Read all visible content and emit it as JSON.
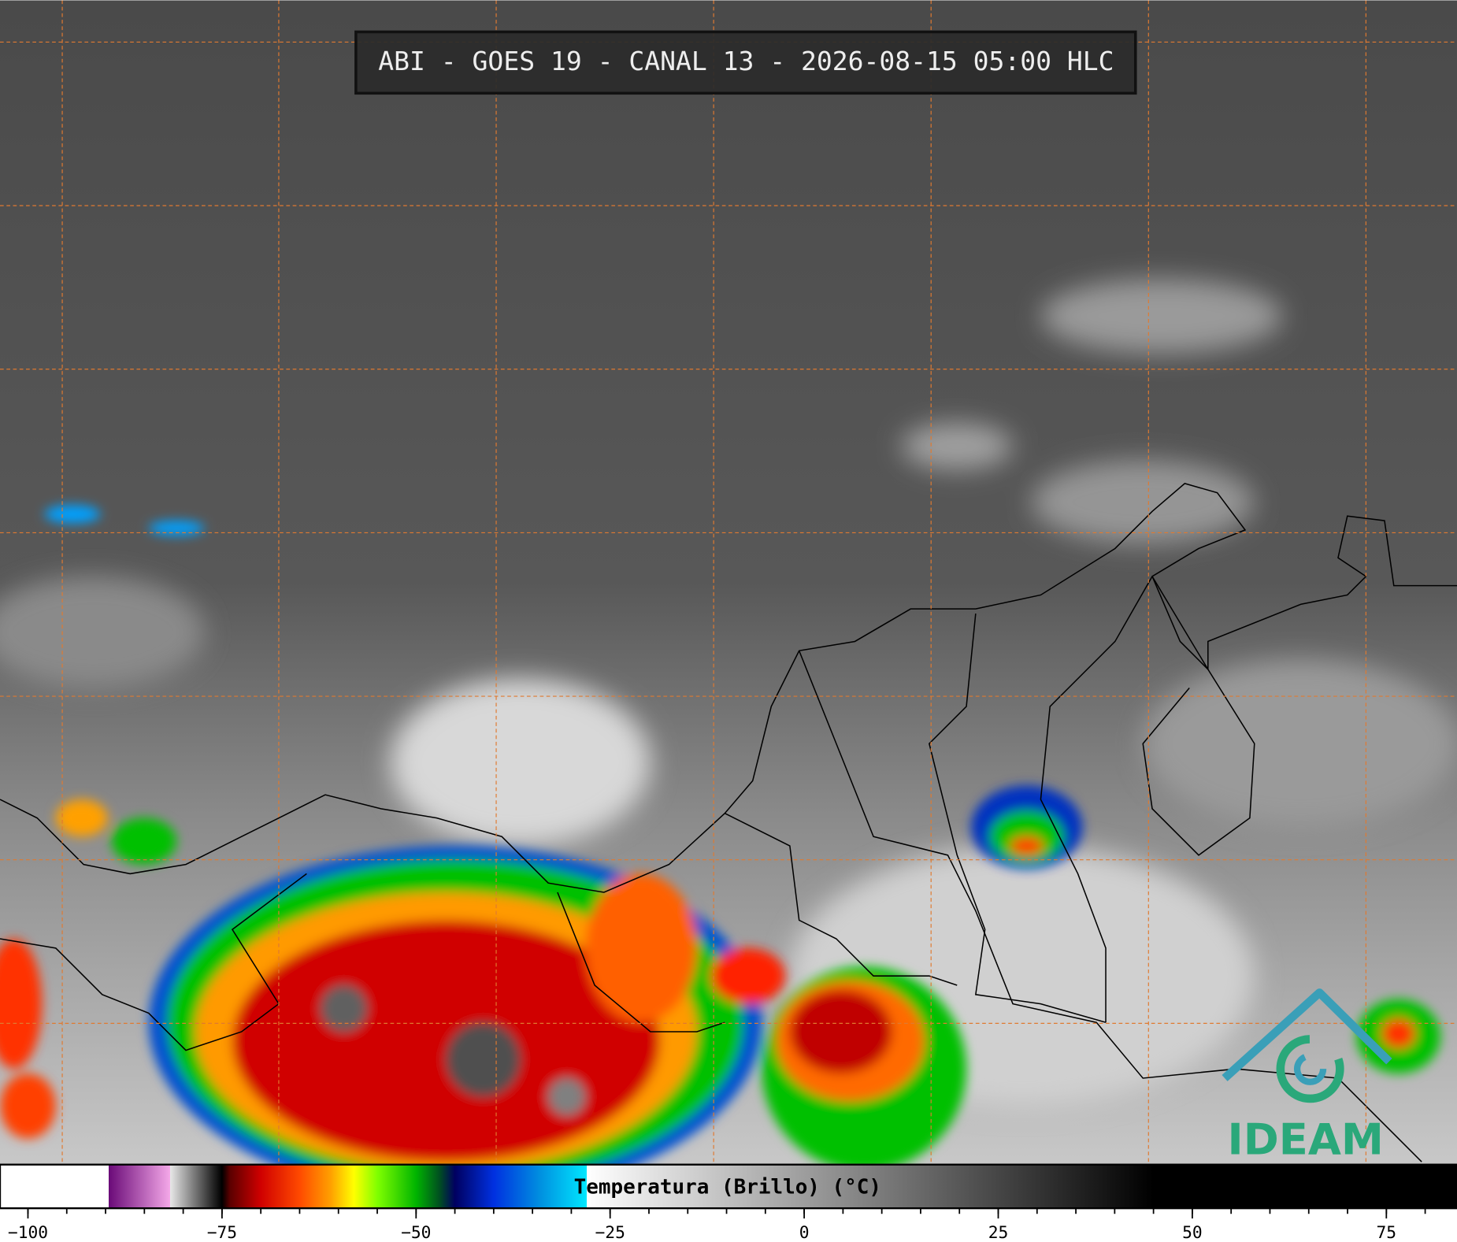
{
  "title": "ABI - GOES 19 - CANAL 13 - 2026-08-15 05:00 HLC",
  "logo": "IDEAM",
  "colorbar": {
    "label": "Temperatura (Brillo) (°C)",
    "xlim": [
      -103.6,
      84.1
    ],
    "xticks": [
      {
        "value": -100,
        "label": "−100"
      },
      {
        "value": -75,
        "label": "−75"
      },
      {
        "value": -50,
        "label": "−50"
      },
      {
        "value": -25,
        "label": "−25"
      },
      0,
      25,
      50,
      75
    ],
    "minor_ticks": [
      -100,
      -95,
      -90,
      -85,
      -80,
      -75,
      -70,
      -65,
      -60,
      -55,
      -50,
      -45,
      -40,
      -35,
      -30,
      -25,
      -20,
      -15,
      -10,
      -5,
      0,
      5,
      10,
      15,
      20,
      25,
      30,
      35,
      40,
      45,
      50,
      55,
      60,
      65,
      70,
      75,
      80
    ],
    "colormap": [
      {
        "value": -103.6,
        "color": "#ffffff"
      },
      {
        "value": -89.6,
        "color": "#ffffff"
      },
      {
        "value": -89.6,
        "color": "#6a0a78"
      },
      {
        "value": -81.7,
        "color": "#f4a8e8"
      },
      {
        "value": -81.7,
        "color": "#e8e8e8"
      },
      {
        "value": -76,
        "color": "#202020"
      },
      {
        "value": -75,
        "color": "#000000"
      },
      {
        "value": -74,
        "color": "#5a0000"
      },
      {
        "value": -70,
        "color": "#d00000"
      },
      {
        "value": -65,
        "color": "#ff4a00"
      },
      {
        "value": -61,
        "color": "#ffa000"
      },
      {
        "value": -58,
        "color": "#ffff00"
      },
      {
        "value": -55,
        "color": "#80ff00"
      },
      {
        "value": -50,
        "color": "#00b400"
      },
      {
        "value": -47,
        "color": "#005020"
      },
      {
        "value": -45,
        "color": "#000060"
      },
      {
        "value": -40,
        "color": "#0030e0"
      },
      {
        "value": -34,
        "color": "#0090e0"
      },
      {
        "value": -28,
        "color": "#00e8ff"
      },
      {
        "value": -28,
        "color": "#ffffff"
      },
      {
        "value": 45,
        "color": "#000000"
      },
      {
        "value": 84.1,
        "color": "#000000"
      }
    ]
  }
}
